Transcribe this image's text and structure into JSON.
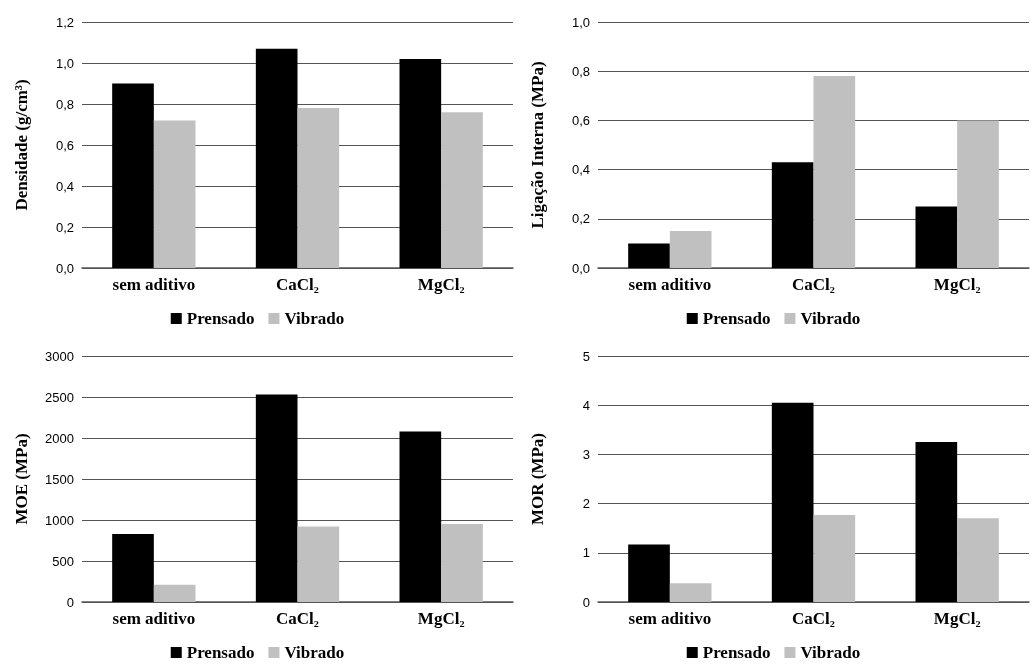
{
  "chart_data": [
    {
      "type": "bar",
      "ylabel": "Densidade (g/cm³)",
      "categories": [
        "sem aditivo",
        "CaCl₂",
        "MgCl₂"
      ],
      "series": [
        {
          "name": "Prensado",
          "color": "#000000",
          "values": [
            0.9,
            1.07,
            1.02
          ]
        },
        {
          "name": "Vibrado",
          "color": "#c0c0c0",
          "values": [
            0.72,
            0.78,
            0.76
          ]
        }
      ],
      "ylim": [
        0,
        1.2
      ],
      "yticks": [
        {
          "value": 0,
          "label": "0,0"
        },
        {
          "value": 0.2,
          "label": "0,2"
        },
        {
          "value": 0.4,
          "label": "0,4"
        },
        {
          "value": 0.6,
          "label": "0,6"
        },
        {
          "value": 0.8,
          "label": "0,8"
        },
        {
          "value": 1.0,
          "label": "1,0"
        },
        {
          "value": 1.2,
          "label": "1,2"
        }
      ],
      "grid": "y",
      "legend": "bottom"
    },
    {
      "type": "bar",
      "ylabel": "Ligação Interna (MPa)",
      "categories": [
        "sem aditivo",
        "CaCl₂",
        "MgCl₂"
      ],
      "series": [
        {
          "name": "Prensado",
          "color": "#000000",
          "values": [
            0.1,
            0.43,
            0.25
          ]
        },
        {
          "name": "Vibrado",
          "color": "#c0c0c0",
          "values": [
            0.15,
            0.78,
            0.6
          ]
        }
      ],
      "ylim": [
        0,
        1.0
      ],
      "yticks": [
        {
          "value": 0,
          "label": "0,0"
        },
        {
          "value": 0.2,
          "label": "0,2"
        },
        {
          "value": 0.4,
          "label": "0,4"
        },
        {
          "value": 0.6,
          "label": "0,6"
        },
        {
          "value": 0.8,
          "label": "0,8"
        },
        {
          "value": 1.0,
          "label": "1,0"
        }
      ],
      "grid": "y",
      "legend": "bottom"
    },
    {
      "type": "bar",
      "ylabel": "MOE (MPa)",
      "categories": [
        "sem aditivo",
        "CaCl₂",
        "MgCl₂"
      ],
      "series": [
        {
          "name": "Prensado",
          "color": "#000000",
          "values": [
            830,
            2530,
            2080
          ]
        },
        {
          "name": "Vibrado",
          "color": "#c0c0c0",
          "values": [
            210,
            920,
            950
          ]
        }
      ],
      "ylim": [
        0,
        3000
      ],
      "yticks": [
        0,
        500,
        1000,
        1500,
        2000,
        2500,
        3000
      ],
      "grid": "y",
      "legend": "bottom"
    },
    {
      "type": "bar",
      "ylabel": "MOR (MPa)",
      "categories": [
        "sem aditivo",
        "CaCl₂",
        "MgCl₂"
      ],
      "series": [
        {
          "name": "Prensado",
          "color": "#000000",
          "values": [
            1.17,
            4.05,
            3.25
          ]
        },
        {
          "name": "Vibrado",
          "color": "#c0c0c0",
          "values": [
            0.38,
            1.77,
            1.7
          ]
        }
      ],
      "ylim": [
        0,
        5
      ],
      "yticks": [
        0,
        1,
        2,
        3,
        4,
        5
      ],
      "grid": "y",
      "legend": "bottom"
    }
  ]
}
